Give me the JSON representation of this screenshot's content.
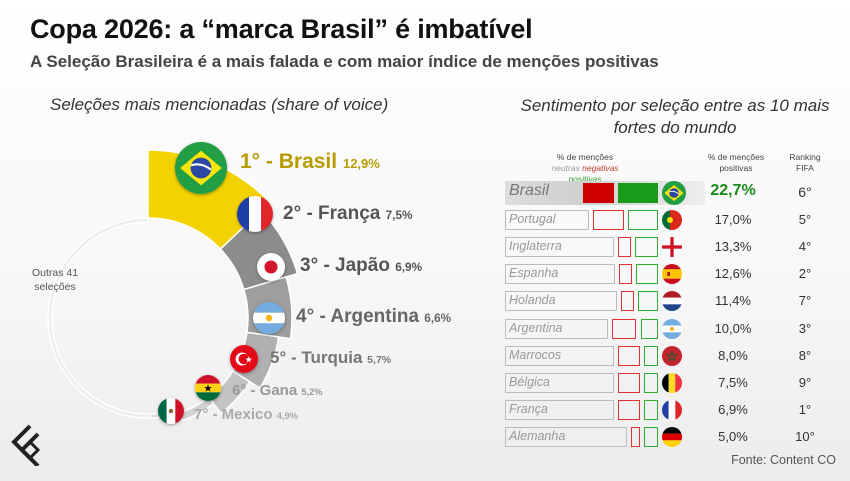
{
  "header": {
    "title": "Copa 2026: a “marca Brasil” é imbatível",
    "subtitle": "A Seleção Brasileira é a mais falada e com maior índice de menções positivas"
  },
  "left_heading": "Seleções mais mencionadas (share of voice)",
  "right_heading": "Sentimento por seleção entre as 10 mais fortes do mundo",
  "outras_label": "Outras 41 seleções",
  "table_headers": {
    "mentions": "% de menções",
    "neutras": "neutras",
    "negativas": "negativas",
    "positivas": "positivas",
    "positive_share": "% de menções positivas",
    "ranking": "Ranking FIFA"
  },
  "source": "Fonte: Content CO",
  "colors": {
    "brasil_yellow": "#f2d200",
    "dark_gray": "#8a8a8a",
    "positive_green": "#1a9a1a",
    "negative_red": "#c00000"
  },
  "chart_data": [
    {
      "type": "pie",
      "style": "donut",
      "categories": [
        "Brasil",
        "França",
        "Japão",
        "Argentina",
        "Turquia",
        "Gana",
        "Mexico",
        "Outras 41 seleções"
      ],
      "labels": [
        "1° - Brasil",
        "2° - França",
        "3° - Japão",
        "4° - Argentina",
        "5° - Turquia",
        "6° - Gana",
        "7° - Mexico"
      ],
      "value_labels": [
        "12,9%",
        "7,5%",
        "6,9%",
        "6,6%",
        "5,7%",
        "5,2%",
        "4,9%"
      ],
      "values": [
        12.9,
        7.5,
        6.9,
        6.6,
        5.7,
        5.2,
        4.9,
        50.3
      ]
    },
    {
      "type": "table",
      "rows": [
        {
          "team": "Brasil",
          "neutral": 45,
          "negative": 14,
          "positive": 22.7,
          "positive_label": "22,7%",
          "fifa_rank": "6°",
          "flag": "brazil-flag-icon"
        },
        {
          "team": "Portugal",
          "neutral": 52,
          "negative": 14,
          "positive": 17.0,
          "positive_label": "17,0%",
          "fifa_rank": "5°",
          "flag": "portugal-flag-icon"
        },
        {
          "team": "Inglaterra",
          "neutral": 62,
          "negative": 6,
          "positive": 13.3,
          "positive_label": "13,3%",
          "fifa_rank": "4°",
          "flag": "england-flag-icon"
        },
        {
          "team": "Espanha",
          "neutral": 64,
          "negative": 6,
          "positive": 12.6,
          "positive_label": "12,6%",
          "fifa_rank": "2°",
          "flag": "spain-flag-icon"
        },
        {
          "team": "Holanda",
          "neutral": 66,
          "negative": 6,
          "positive": 11.4,
          "positive_label": "11,4%",
          "fifa_rank": "7°",
          "flag": "netherlands-flag-icon"
        },
        {
          "team": "Argentina",
          "neutral": 59,
          "negative": 11,
          "positive": 10.0,
          "positive_label": "10,0%",
          "fifa_rank": "3°",
          "flag": "argentina-flag-icon"
        },
        {
          "team": "Marrocos",
          "neutral": 67,
          "negative": 10,
          "positive": 8.0,
          "positive_label": "8,0%",
          "fifa_rank": "8°",
          "flag": "morocco-flag-icon"
        },
        {
          "team": "Bélgica",
          "neutral": 66,
          "negative": 10,
          "positive": 7.5,
          "positive_label": "7,5%",
          "fifa_rank": "9°",
          "flag": "belgium-flag-icon"
        },
        {
          "team": "França",
          "neutral": 67,
          "negative": 10,
          "positive": 6.9,
          "positive_label": "6,9%",
          "fifa_rank": "1°",
          "flag": "france-flag-icon"
        },
        {
          "team": "Alemanha",
          "neutral": 71,
          "negative": 4,
          "positive": 5.0,
          "positive_label": "5,0%",
          "fifa_rank": "10°",
          "flag": "germany-flag-icon"
        }
      ]
    }
  ]
}
